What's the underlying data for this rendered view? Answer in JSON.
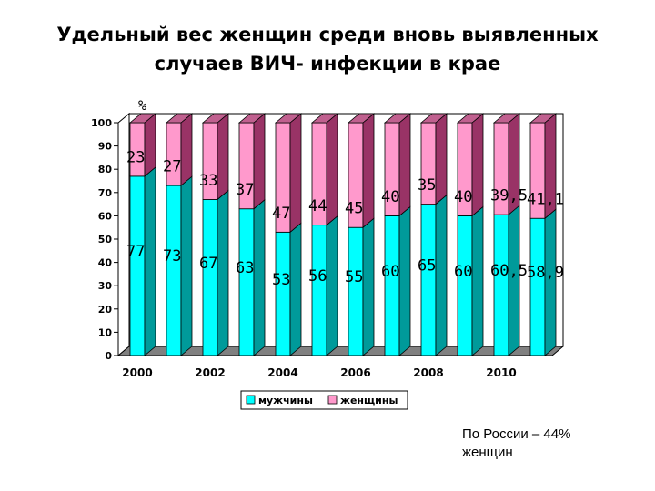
{
  "title": {
    "line1": "Удельный вес  женщин среди вновь выявленных",
    "line2": "случаев ВИЧ- инфекции в крае"
  },
  "note": {
    "line1": "По России – 44%",
    "line2": "женщин"
  },
  "colors": {
    "men_front": "#00ffff",
    "men_side": "#009a9a",
    "men_top": "#00c8c8",
    "women_front": "#ff99cc",
    "women_side": "#993366",
    "women_top": "#c0608f",
    "floor": "#808080",
    "outline": "#000000"
  },
  "chart_data": {
    "type": "bar",
    "stacked": true,
    "three_d": true,
    "x": [
      2000,
      2001,
      2002,
      2003,
      2004,
      2005,
      2006,
      2007,
      2008,
      2009,
      2010,
      2011
    ],
    "xtick_labels": [
      "2000",
      "2002",
      "2004",
      "2006",
      "2008",
      "2010"
    ],
    "xtick_positions": [
      2000,
      2002,
      2004,
      2006,
      2008,
      2010
    ],
    "ylabel": "%",
    "ylim": [
      0,
      100
    ],
    "yticks": [
      0,
      10,
      20,
      30,
      40,
      50,
      60,
      70,
      80,
      90,
      100
    ],
    "series": [
      {
        "name": "мужчины",
        "values": [
          77,
          73,
          67,
          63,
          53,
          56,
          55,
          60,
          65,
          60,
          60.5,
          58.9
        ],
        "labels": [
          "77",
          "73",
          "67",
          "63",
          "53",
          "56",
          "55",
          "60",
          "65",
          "60",
          "60,5",
          "58,9"
        ]
      },
      {
        "name": "женщины",
        "values": [
          23,
          27,
          33,
          37,
          47,
          44,
          45,
          40,
          35,
          40,
          39.5,
          41.1
        ],
        "labels": [
          "23",
          "27",
          "33",
          "37",
          "47",
          "44",
          "45",
          "40",
          "35",
          "40",
          "39,5",
          "41,1"
        ]
      }
    ],
    "legend_position": "bottom",
    "grid": false
  }
}
